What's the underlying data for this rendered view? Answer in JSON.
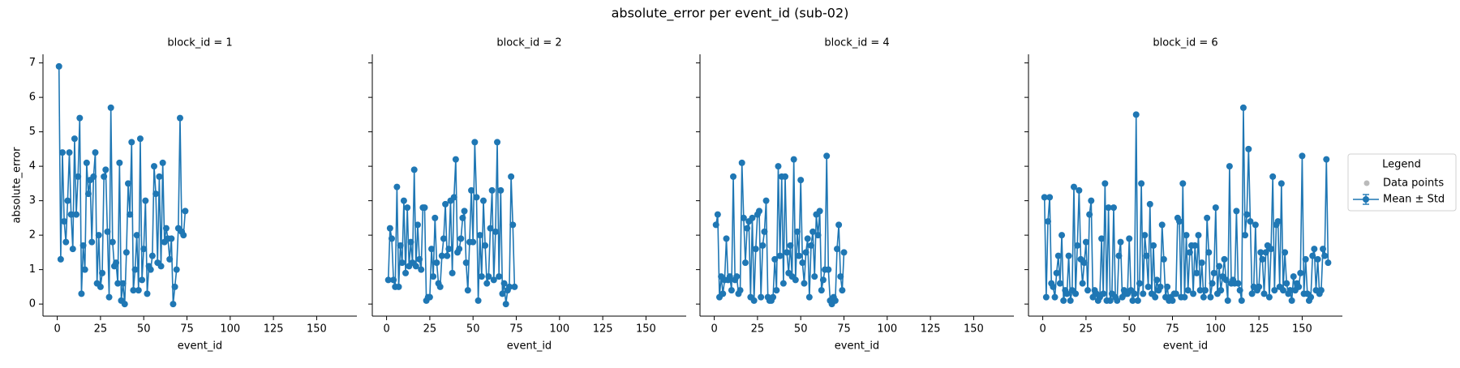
{
  "title": "absolute_error per event_id (sub-02)",
  "legend": {
    "title": "Legend",
    "entries": [
      {
        "label": "Data points",
        "color": "#bbbbbb"
      },
      {
        "label": "Mean ± Std",
        "color": "#1f77b4"
      }
    ]
  },
  "chart_data": [
    {
      "type": "line",
      "title": "block_id = 1",
      "xlabel": "event_id",
      "ylabel": "absolute_error",
      "color": "#1f77b4",
      "xlim": [
        -8.25,
        173.25
      ],
      "xticks": [
        0,
        25,
        50,
        75,
        100,
        125,
        150
      ],
      "ylim": [
        -0.35,
        7.25
      ],
      "yticks": [
        0,
        1,
        2,
        3,
        4,
        5,
        6,
        7
      ],
      "x": [
        1,
        2,
        3,
        4,
        5,
        6,
        7,
        8,
        9,
        10,
        11,
        12,
        13,
        14,
        15,
        16,
        17,
        18,
        19,
        20,
        21,
        22,
        23,
        24,
        25,
        26,
        27,
        28,
        29,
        30,
        31,
        32,
        33,
        34,
        35,
        36,
        37,
        38,
        39,
        40,
        41,
        42,
        43,
        44,
        45,
        46,
        47,
        48,
        49,
        50,
        51,
        52,
        53,
        54,
        55,
        56,
        57,
        58,
        59,
        60,
        61,
        62,
        63,
        64,
        65,
        66,
        67,
        68,
        69,
        70,
        71,
        72,
        73,
        74
      ],
      "values": [
        6.9,
        1.3,
        4.4,
        2.4,
        1.8,
        3.0,
        4.4,
        2.6,
        1.6,
        4.8,
        2.6,
        3.7,
        5.4,
        0.3,
        1.7,
        1.0,
        4.1,
        3.2,
        3.6,
        1.8,
        3.7,
        4.4,
        0.6,
        2.0,
        0.5,
        0.9,
        3.7,
        3.9,
        2.1,
        0.2,
        5.7,
        1.8,
        1.1,
        1.2,
        0.6,
        4.1,
        0.1,
        0.6,
        0.0,
        1.5,
        3.5,
        2.6,
        4.7,
        0.4,
        1.0,
        2.0,
        0.4,
        4.8,
        0.7,
        1.6,
        3.0,
        0.3,
        1.1,
        1.0,
        1.4,
        4.0,
        3.2,
        1.2,
        3.7,
        1.1,
        4.1,
        1.8,
        2.2,
        1.9,
        1.3,
        1.9,
        0.0,
        0.5,
        1.0,
        2.2,
        5.4,
        2.1,
        2.0,
        2.7
      ]
    },
    {
      "type": "line",
      "title": "block_id = 2",
      "xlabel": "event_id",
      "color": "#1f77b4",
      "xlim": [
        -8.25,
        173.25
      ],
      "xticks": [
        0,
        25,
        50,
        75,
        100,
        125,
        150
      ],
      "ylim": [
        -0.35,
        7.25
      ],
      "yticks": [
        0,
        1,
        2,
        3,
        4,
        5,
        6,
        7
      ],
      "x": [
        1,
        2,
        3,
        4,
        5,
        6,
        7,
        8,
        9,
        10,
        11,
        12,
        13,
        14,
        15,
        16,
        17,
        18,
        19,
        20,
        21,
        22,
        23,
        24,
        25,
        26,
        27,
        28,
        29,
        30,
        31,
        32,
        33,
        34,
        35,
        36,
        37,
        38,
        39,
        40,
        41,
        42,
        43,
        44,
        45,
        46,
        47,
        48,
        49,
        50,
        51,
        52,
        53,
        54,
        55,
        56,
        57,
        58,
        59,
        60,
        61,
        62,
        63,
        64,
        65,
        66,
        67,
        68,
        69,
        70,
        71,
        72,
        73,
        74
      ],
      "values": [
        0.7,
        2.2,
        1.9,
        0.7,
        0.5,
        3.4,
        0.5,
        1.7,
        1.2,
        3.0,
        0.9,
        2.8,
        1.1,
        1.8,
        1.2,
        3.9,
        1.1,
        2.3,
        1.3,
        1.0,
        2.8,
        2.8,
        0.1,
        0.2,
        0.2,
        1.6,
        0.8,
        2.5,
        1.2,
        0.6,
        0.5,
        1.4,
        1.9,
        2.9,
        1.4,
        1.6,
        3.0,
        0.9,
        3.1,
        4.2,
        1.5,
        1.6,
        1.9,
        2.5,
        2.7,
        1.2,
        0.4,
        1.8,
        3.3,
        1.8,
        4.7,
        3.1,
        0.1,
        2.0,
        0.8,
        3.0,
        1.7,
        0.6,
        0.8,
        2.2,
        3.3,
        0.7,
        2.1,
        4.7,
        0.8,
        3.3,
        0.3,
        0.6,
        0.0,
        0.4,
        0.5,
        3.7,
        2.3,
        0.5
      ]
    },
    {
      "type": "line",
      "title": "block_id = 4",
      "xlabel": "event_id",
      "color": "#1f77b4",
      "xlim": [
        -8.25,
        173.25
      ],
      "xticks": [
        0,
        25,
        50,
        75,
        100,
        125,
        150
      ],
      "ylim": [
        -0.35,
        7.25
      ],
      "yticks": [
        0,
        1,
        2,
        3,
        4,
        5,
        6,
        7
      ],
      "x": [
        1,
        2,
        3,
        4,
        5,
        6,
        7,
        8,
        9,
        10,
        11,
        12,
        13,
        14,
        15,
        16,
        17,
        18,
        19,
        20,
        21,
        22,
        23,
        24,
        25,
        26,
        27,
        28,
        29,
        30,
        31,
        32,
        33,
        34,
        35,
        36,
        37,
        38,
        39,
        40,
        41,
        42,
        43,
        44,
        45,
        46,
        47,
        48,
        49,
        50,
        51,
        52,
        53,
        54,
        55,
        56,
        57,
        58,
        59,
        60,
        61,
        62,
        63,
        64,
        65,
        66,
        67,
        68,
        69,
        70,
        71,
        72,
        73,
        74,
        75
      ],
      "values": [
        2.3,
        2.6,
        0.2,
        0.8,
        0.3,
        0.7,
        1.9,
        0.7,
        0.8,
        0.4,
        3.7,
        0.7,
        0.8,
        0.3,
        0.4,
        4.1,
        2.5,
        1.2,
        2.2,
        2.4,
        0.2,
        2.5,
        0.1,
        1.6,
        2.6,
        2.7,
        0.2,
        1.7,
        2.1,
        3.0,
        0.2,
        0.1,
        0.1,
        0.2,
        1.3,
        0.4,
        4.0,
        1.4,
        3.7,
        0.6,
        3.7,
        1.5,
        0.9,
        1.7,
        0.8,
        4.2,
        0.7,
        2.1,
        1.4,
        3.6,
        1.2,
        0.6,
        1.5,
        1.9,
        0.2,
        1.7,
        2.1,
        0.8,
        2.6,
        2.0,
        2.7,
        0.4,
        0.7,
        1.0,
        4.3,
        1.0,
        0.1,
        0.0,
        0.2,
        0.1,
        1.6,
        2.3,
        0.8,
        0.4,
        1.5
      ]
    },
    {
      "type": "line",
      "title": "block_id = 6",
      "xlabel": "event_id",
      "color": "#1f77b4",
      "xlim": [
        -8.25,
        173.25
      ],
      "xticks": [
        0,
        25,
        50,
        75,
        100,
        125,
        150
      ],
      "ylim": [
        -0.35,
        7.25
      ],
      "yticks": [
        0,
        1,
        2,
        3,
        4,
        5,
        6,
        7
      ],
      "x": [
        1,
        2,
        3,
        4,
        5,
        6,
        7,
        8,
        9,
        10,
        11,
        12,
        13,
        14,
        15,
        16,
        17,
        18,
        19,
        20,
        21,
        22,
        23,
        24,
        25,
        26,
        27,
        28,
        29,
        30,
        31,
        32,
        33,
        34,
        35,
        36,
        37,
        38,
        39,
        40,
        41,
        42,
        43,
        44,
        45,
        46,
        47,
        48,
        49,
        50,
        51,
        52,
        53,
        54,
        55,
        56,
        57,
        58,
        59,
        60,
        61,
        62,
        63,
        64,
        65,
        66,
        67,
        68,
        69,
        70,
        71,
        72,
        73,
        74,
        75,
        76,
        77,
        78,
        79,
        80,
        81,
        82,
        83,
        84,
        85,
        86,
        87,
        88,
        89,
        90,
        91,
        92,
        93,
        94,
        95,
        96,
        97,
        98,
        99,
        100,
        101,
        102,
        103,
        104,
        105,
        106,
        107,
        108,
        109,
        110,
        111,
        112,
        113,
        114,
        115,
        116,
        117,
        118,
        119,
        120,
        121,
        122,
        123,
        124,
        125,
        126,
        127,
        128,
        129,
        130,
        131,
        132,
        133,
        134,
        135,
        136,
        137,
        138,
        139,
        140,
        141,
        142,
        143,
        144,
        145,
        146,
        147,
        148,
        149,
        150,
        151,
        152,
        153,
        154,
        155,
        156,
        157,
        158,
        159,
        160,
        161,
        162,
        163,
        164,
        165
      ],
      "values": [
        3.1,
        0.2,
        2.4,
        3.1,
        0.6,
        0.5,
        0.2,
        0.9,
        1.4,
        0.6,
        2.0,
        0.1,
        0.4,
        0.3,
        1.4,
        0.1,
        0.4,
        3.4,
        0.3,
        1.7,
        3.3,
        1.3,
        0.6,
        1.2,
        1.8,
        0.4,
        2.6,
        3.0,
        0.2,
        0.4,
        0.3,
        0.1,
        0.2,
        1.9,
        0.3,
        3.5,
        0.1,
        2.8,
        0.1,
        0.3,
        2.8,
        0.2,
        0.1,
        1.4,
        1.8,
        0.2,
        0.4,
        0.3,
        0.3,
        1.9,
        0.4,
        0.1,
        0.3,
        5.5,
        0.1,
        0.6,
        3.5,
        0.3,
        2.0,
        1.4,
        0.5,
        2.9,
        0.3,
        1.7,
        0.2,
        0.7,
        0.4,
        0.5,
        2.3,
        1.3,
        0.2,
        0.5,
        0.1,
        0.2,
        0.1,
        0.3,
        0.3,
        2.5,
        2.4,
        0.2,
        3.5,
        0.2,
        2.0,
        0.4,
        1.5,
        1.7,
        0.3,
        1.7,
        0.9,
        2.0,
        0.4,
        1.2,
        0.2,
        0.4,
        2.5,
        1.5,
        0.2,
        0.6,
        0.9,
        2.8,
        0.3,
        1.1,
        0.4,
        0.8,
        1.3,
        0.7,
        0.1,
        4.0,
        0.6,
        0.7,
        0.6,
        2.7,
        0.6,
        0.4,
        0.1,
        5.7,
        2.0,
        2.6,
        4.5,
        2.4,
        0.3,
        0.5,
        2.3,
        0.4,
        0.5,
        1.5,
        1.3,
        0.3,
        1.5,
        1.7,
        0.2,
        1.6,
        3.7,
        0.4,
        2.3,
        2.4,
        0.5,
        3.5,
        0.4,
        1.5,
        0.6,
        0.3,
        0.4,
        0.1,
        0.8,
        0.4,
        0.6,
        0.5,
        0.9,
        4.3,
        0.3,
        1.3,
        0.3,
        0.1,
        0.2,
        1.4,
        1.6,
        0.4,
        1.3,
        0.3,
        0.4,
        1.6,
        1.4,
        4.2,
        1.2
      ]
    }
  ]
}
